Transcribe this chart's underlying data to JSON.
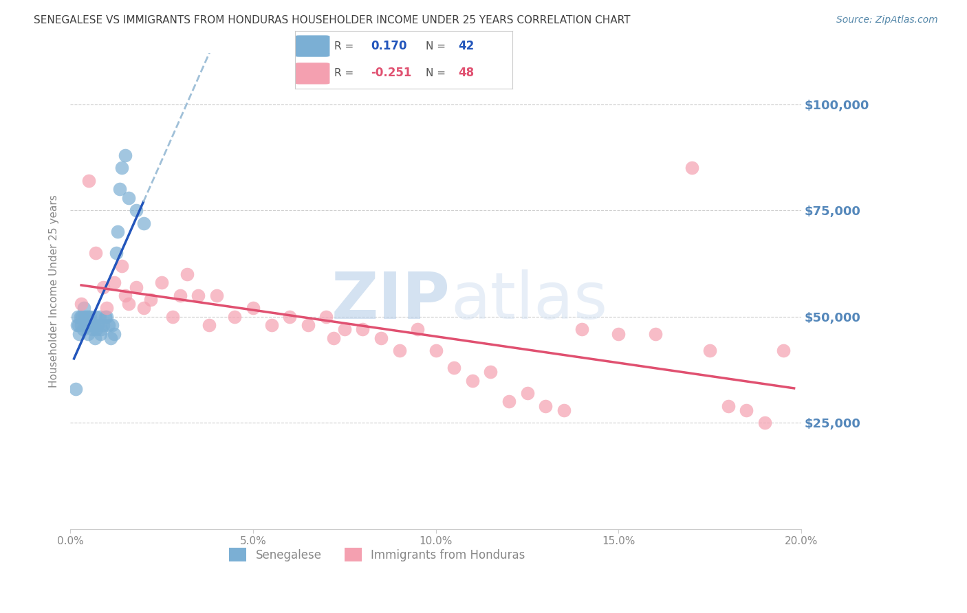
{
  "title": "SENEGALESE VS IMMIGRANTS FROM HONDURAS HOUSEHOLDER INCOME UNDER 25 YEARS CORRELATION CHART",
  "source": "Source: ZipAtlas.com",
  "ylabel": "Householder Income Under 25 years",
  "xlabel_ticks": [
    "0.0%",
    "5.0%",
    "10.0%",
    "15.0%",
    "20.0%"
  ],
  "xlabel_vals": [
    0.0,
    5.0,
    10.0,
    15.0,
    20.0
  ],
  "ylabel_ticks": [
    0,
    25000,
    50000,
    75000,
    100000
  ],
  "ylabel_labels": [
    "",
    "$25,000",
    "$50,000",
    "$75,000",
    "$100,000"
  ],
  "xlim": [
    0.0,
    20.0
  ],
  "ylim": [
    0,
    112000
  ],
  "blue_R": 0.17,
  "blue_N": 42,
  "pink_R": -0.251,
  "pink_N": 48,
  "blue_color": "#7bafd4",
  "pink_color": "#f4a0b0",
  "blue_line_color": "#2255bb",
  "pink_line_color": "#e05070",
  "dashed_line_color": "#a0c0d8",
  "watermark_color": "#c8dce8",
  "title_color": "#404040",
  "source_color": "#5588aa",
  "axis_label_color": "#5588bb",
  "senegalese_x": [
    0.15,
    0.18,
    0.2,
    0.22,
    0.25,
    0.28,
    0.3,
    0.32,
    0.35,
    0.38,
    0.4,
    0.42,
    0.45,
    0.48,
    0.5,
    0.52,
    0.55,
    0.58,
    0.6,
    0.65,
    0.68,
    0.7,
    0.72,
    0.75,
    0.8,
    0.82,
    0.85,
    0.9,
    0.95,
    1.0,
    1.05,
    1.1,
    1.15,
    1.2,
    1.25,
    1.3,
    1.35,
    1.4,
    1.5,
    1.6,
    1.8,
    2.0
  ],
  "senegalese_y": [
    33000,
    48000,
    50000,
    48000,
    46000,
    50000,
    48000,
    50000,
    47000,
    52000,
    50000,
    48000,
    50000,
    46000,
    50000,
    48000,
    50000,
    48000,
    47000,
    48000,
    45000,
    50000,
    47000,
    48000,
    50000,
    46000,
    47000,
    48000,
    50000,
    50000,
    48000,
    45000,
    48000,
    46000,
    65000,
    70000,
    80000,
    85000,
    88000,
    78000,
    75000,
    72000
  ],
  "honduras_x": [
    0.3,
    0.5,
    0.7,
    0.9,
    1.0,
    1.2,
    1.4,
    1.5,
    1.6,
    1.8,
    2.0,
    2.2,
    2.5,
    2.8,
    3.0,
    3.2,
    3.5,
    3.8,
    4.0,
    4.5,
    5.0,
    5.5,
    6.0,
    6.5,
    7.0,
    7.2,
    7.5,
    8.0,
    8.5,
    9.0,
    9.5,
    10.0,
    10.5,
    11.0,
    11.5,
    12.0,
    12.5,
    13.0,
    13.5,
    14.0,
    15.0,
    16.0,
    17.0,
    17.5,
    18.0,
    18.5,
    19.0,
    19.5
  ],
  "honduras_y": [
    53000,
    82000,
    65000,
    57000,
    52000,
    58000,
    62000,
    55000,
    53000,
    57000,
    52000,
    54000,
    58000,
    50000,
    55000,
    60000,
    55000,
    48000,
    55000,
    50000,
    52000,
    48000,
    50000,
    48000,
    50000,
    45000,
    47000,
    47000,
    45000,
    42000,
    47000,
    42000,
    38000,
    35000,
    37000,
    30000,
    32000,
    29000,
    28000,
    47000,
    46000,
    46000,
    85000,
    42000,
    29000,
    28000,
    25000,
    42000
  ]
}
